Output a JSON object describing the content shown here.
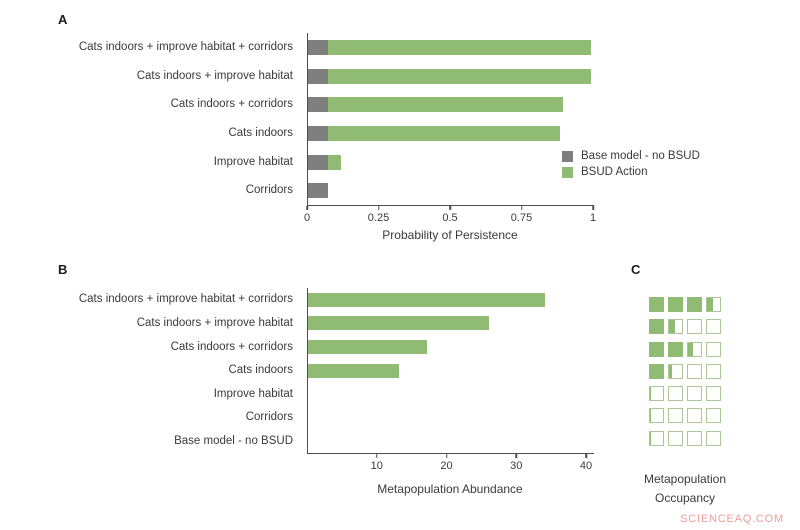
{
  "figure": {
    "watermark": "SCIENCEAQ.COM",
    "colors": {
      "base_model": "#7f7f7f",
      "bsud_action": "#8fbb73",
      "axis": "#4f4f4f",
      "text": "#3a3a3a",
      "empty_square_border": "#abc793",
      "watermark": "#ef9c9a",
      "background": "#ffffff"
    }
  },
  "panels": {
    "a": {
      "letter": "A"
    },
    "b": {
      "letter": "B"
    },
    "c": {
      "letter": "C",
      "label_line1": "Metapopulation",
      "label_line2": "Occupancy"
    }
  },
  "chart_data": [
    {
      "type": "bar",
      "panel": "A",
      "orientation": "horizontal",
      "stacked": true,
      "categories": [
        "Cats indoors + improve habitat + corridors",
        "Cats indoors + improve habitat",
        "Cats indoors + corridors",
        "Cats indoors",
        "Improve habitat",
        "Corridors"
      ],
      "series": [
        {
          "name": "Base model - no BSUD",
          "color": "#7f7f7f",
          "values": [
            0.07,
            0.07,
            0.07,
            0.07,
            0.07,
            0.07
          ]
        },
        {
          "name": "BSUD Action",
          "color": "#8fbb73",
          "values": [
            0.92,
            0.92,
            0.82,
            0.81,
            0.045,
            0
          ]
        }
      ],
      "totals": [
        0.99,
        0.99,
        0.89,
        0.88,
        0.115,
        0.07
      ],
      "xlabel": "Probability of Persistence",
      "xlim": [
        0,
        1
      ],
      "xticks": [
        0,
        0.25,
        0.5,
        0.75,
        1
      ],
      "xtick_labels": [
        "0",
        "0.25",
        "0.5",
        "0.75",
        "1"
      ],
      "legend_position": "inside lower right",
      "grid": false
    },
    {
      "type": "bar",
      "panel": "B",
      "orientation": "horizontal",
      "categories": [
        "Cats indoors + improve habitat + corridors",
        "Cats indoors + improve habitat",
        "Cats indoors + corridors",
        "Cats indoors",
        "Improve habitat",
        "Corridors",
        "Base model - no BSUD"
      ],
      "values": [
        34,
        26,
        17,
        13,
        0,
        0,
        0
      ],
      "bar_color": "#8fbb73",
      "xlabel": "Metapopulation Abundance",
      "xlim": [
        0,
        41
      ],
      "xticks": [
        10,
        20,
        30,
        40
      ],
      "xtick_labels": [
        "10",
        "20",
        "30",
        "40"
      ],
      "grid": false
    },
    {
      "type": "heatmap",
      "subtype": "waffle-occupancy",
      "panel": "C",
      "title": "Metapopulation Occupancy",
      "rows": 7,
      "cols": 4,
      "row_categories": [
        "Cats indoors + improve habitat + corridors",
        "Cats indoors + improve habitat",
        "Cats indoors + corridors",
        "Cats indoors",
        "Improve habitat",
        "Corridors",
        "Base model - no BSUD"
      ],
      "cell_fills": [
        [
          1,
          1,
          1,
          0.45
        ],
        [
          1,
          0.45,
          0,
          0
        ],
        [
          1,
          1,
          0.4,
          0
        ],
        [
          1,
          0.22,
          0,
          0
        ],
        [
          0.06,
          0,
          0,
          0
        ],
        [
          0.05,
          0,
          0,
          0
        ],
        [
          0.08,
          0,
          0,
          0
        ]
      ],
      "fill_color": "#8fbb73"
    }
  ]
}
